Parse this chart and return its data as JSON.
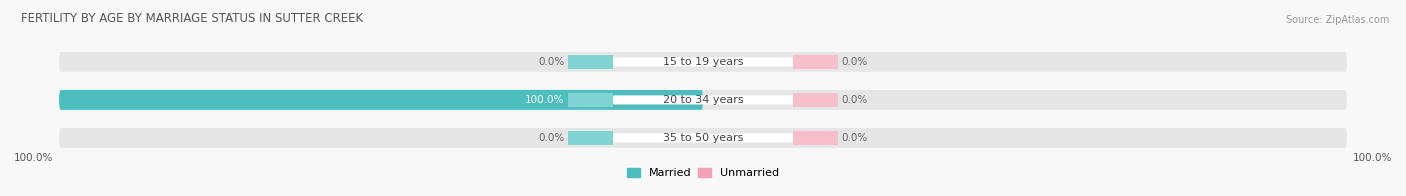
{
  "title": "FERTILITY BY AGE BY MARRIAGE STATUS IN SUTTER CREEK",
  "source": "Source: ZipAtlas.com",
  "categories": [
    "15 to 19 years",
    "20 to 34 years",
    "35 to 50 years"
  ],
  "married_values": [
    0.0,
    100.0,
    0.0
  ],
  "unmarried_values": [
    0.0,
    0.0,
    0.0
  ],
  "married_color": "#4dbdbd",
  "unmarried_color": "#f4a0b5",
  "bar_bg_color": "#e6e6e6",
  "center_married_color": "#82d4d4",
  "center_unmarried_color": "#f7bfcc",
  "bar_height": 0.52,
  "title_fontsize": 8.5,
  "label_fontsize": 7.5,
  "cat_fontsize": 8,
  "legend_fontsize": 8,
  "background_color": "#f8f8f8",
  "text_color": "#555555",
  "pct_color": "#666666"
}
